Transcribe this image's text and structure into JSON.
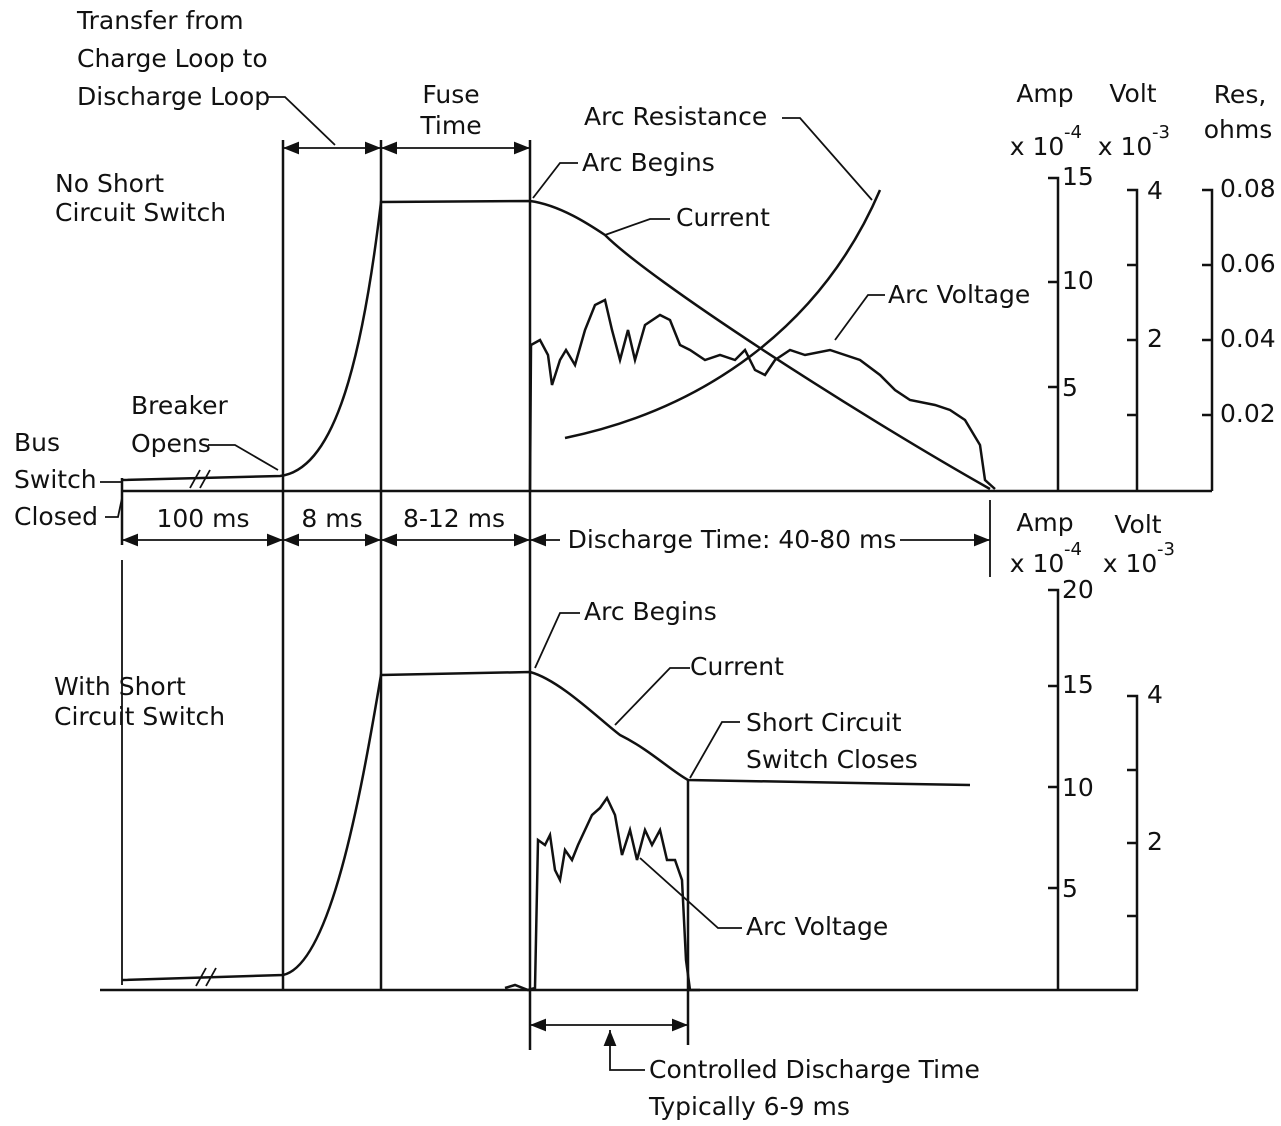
{
  "top": {
    "transfer_label": [
      "Transfer from",
      "Charge Loop to",
      "Discharge Loop"
    ],
    "fuse_label": [
      "Fuse",
      "Time"
    ],
    "arc_resistance": "Arc Resistance",
    "arc_begins": "Arc Begins",
    "current": "Current",
    "arc_voltage": "Arc Voltage",
    "panel_label": [
      "No Short",
      "Circuit Switch"
    ],
    "breaker_label": [
      "Breaker",
      "Opens"
    ],
    "bus_label": [
      "Bus",
      "Switch",
      "Closed"
    ],
    "amp_axis": {
      "title": "Amp",
      "scale": "x 10",
      "exponent": "-4",
      "ticks": [
        15,
        10,
        5
      ]
    },
    "volt_axis": {
      "title": "Volt",
      "scale": "x 10",
      "exponent": "-3",
      "ticks": [
        4,
        2
      ]
    },
    "res_axis": {
      "title": [
        "Res,",
        "ohms"
      ],
      "ticks": [
        0.08,
        0.06,
        0.04,
        0.02
      ]
    }
  },
  "intervals": [
    "100 ms",
    "8 ms",
    "8-12 ms",
    "Discharge Time: 40-80 ms"
  ],
  "bottom": {
    "panel_label": [
      "With Short",
      "Circuit Switch"
    ],
    "arc_begins": "Arc Begins",
    "current": "Current",
    "switch_closes": [
      "Short Circuit",
      "Switch Closes"
    ],
    "arc_voltage": "Arc Voltage",
    "controlled": [
      "Controlled Discharge Time",
      "Typically 6-9 ms"
    ],
    "amp_axis": {
      "title": "Amp",
      "scale": "x 10",
      "exponent": "-4",
      "ticks": [
        20,
        15,
        10,
        5
      ]
    },
    "volt_axis": {
      "title": "Volt",
      "scale": "x 10",
      "exponent": "-3",
      "ticks": [
        4,
        2
      ]
    }
  }
}
